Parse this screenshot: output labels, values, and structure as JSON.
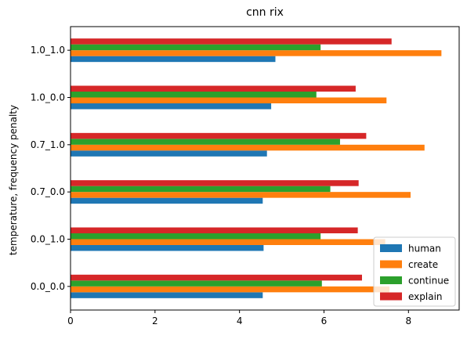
{
  "chart_data": {
    "type": "bar",
    "orientation": "horizontal",
    "title": "cnn rix",
    "xlabel": "",
    "ylabel": "temperature, frequency penalty",
    "categories": [
      "0.0_0.0",
      "0.0_1.0",
      "0.7_0.0",
      "0.7_1.0",
      "1.0_0.0",
      "1.0_1.0"
    ],
    "xlim": [
      0,
      9.2
    ],
    "xticks": [
      0,
      2,
      4,
      6,
      8
    ],
    "grid": false,
    "legend_position": "lower-right",
    "series": [
      {
        "name": "human",
        "color": "#1f77b4",
        "values": [
          4.55,
          4.57,
          4.55,
          4.65,
          4.75,
          4.85
        ]
      },
      {
        "name": "create",
        "color": "#ff7f0e",
        "values": [
          7.55,
          7.45,
          8.05,
          8.38,
          7.48,
          8.78
        ]
      },
      {
        "name": "continue",
        "color": "#2ca02c",
        "values": [
          5.95,
          5.92,
          6.15,
          6.38,
          5.82,
          5.92
        ]
      },
      {
        "name": "explain",
        "color": "#d62728",
        "values": [
          6.9,
          6.8,
          6.82,
          7.0,
          6.75,
          7.6
        ]
      }
    ]
  }
}
